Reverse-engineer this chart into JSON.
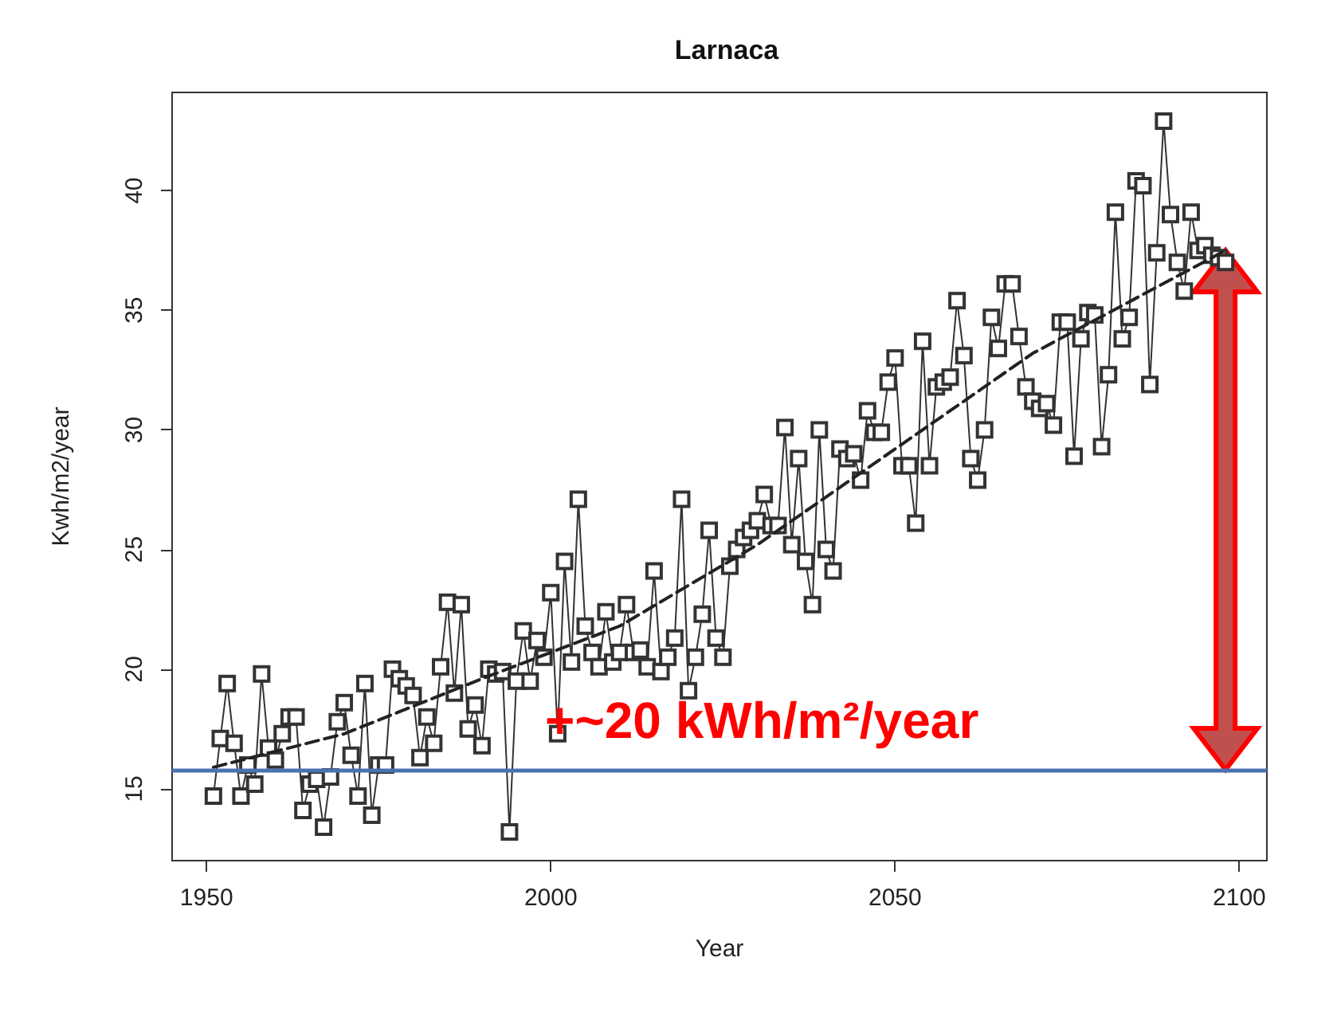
{
  "chart_data": {
    "type": "line",
    "title": "Larnaca",
    "xlabel": "Year",
    "ylabel": "Kwh/m2/year",
    "annotations": [
      "+~20 kWh/m²/year"
    ],
    "marker": "square",
    "grid": false,
    "xlim": [
      1945,
      2104
    ],
    "ylim": [
      12.0,
      44.1
    ],
    "xticks": [
      1950,
      2000,
      2050,
      2100
    ],
    "yticks": [
      15,
      20,
      25,
      30,
      35,
      40
    ],
    "ref_lines": [
      {
        "axis": "y",
        "value": 15.8,
        "color": "#4a72b0"
      }
    ],
    "series": [
      {
        "color": "#333333",
        "x": [
          1951,
          1952,
          1953,
          1954,
          1955,
          1956,
          1957,
          1958,
          1959,
          1960,
          1961,
          1962,
          1963,
          1964,
          1965,
          1966,
          1967,
          1968,
          1969,
          1970,
          1971,
          1972,
          1973,
          1974,
          1975,
          1976,
          1977,
          1978,
          1979,
          1980,
          1981,
          1982,
          1983,
          1984,
          1985,
          1986,
          1987,
          1988,
          1989,
          1990,
          1991,
          1992,
          1993,
          1994,
          1995,
          1996,
          1997,
          1998,
          1999,
          2000,
          2001,
          2002,
          2003,
          2004,
          2005,
          2006,
          2007,
          2008,
          2009,
          2010,
          2011,
          2012,
          2013,
          2014,
          2015,
          2016,
          2017,
          2018,
          2019,
          2020,
          2021,
          2022,
          2023,
          2024,
          2025,
          2026,
          2027,
          2028,
          2029,
          2030,
          2031,
          2032,
          2033,
          2034,
          2035,
          2036,
          2037,
          2038,
          2039,
          2040,
          2041,
          2042,
          2043,
          2044,
          2045,
          2046,
          2047,
          2048,
          2049,
          2050,
          2051,
          2052,
          2053,
          2054,
          2055,
          2056,
          2057,
          2058,
          2059,
          2060,
          2061,
          2062,
          2063,
          2064,
          2065,
          2066,
          2067,
          2068,
          2069,
          2070,
          2071,
          2072,
          2073,
          2074,
          2075,
          2076,
          2077,
          2078,
          2079,
          2080,
          2081,
          2082,
          2083,
          2084,
          2085,
          2086,
          2087,
          2088,
          2089,
          2090,
          2091,
          2092,
          2093,
          2094,
          2095,
          2096,
          2097,
          2098
        ],
        "values": [
          14.7,
          17.1,
          19.4,
          16.9,
          14.7,
          16.0,
          15.2,
          19.8,
          16.7,
          16.2,
          17.3,
          18.0,
          18.0,
          14.1,
          15.2,
          15.4,
          13.4,
          15.5,
          17.8,
          18.6,
          16.4,
          14.7,
          19.4,
          13.9,
          16.0,
          16.0,
          20.0,
          19.6,
          19.3,
          18.9,
          16.3,
          18.0,
          16.9,
          20.1,
          22.8,
          19.0,
          22.7,
          17.5,
          18.5,
          16.8,
          20.0,
          19.8,
          19.9,
          13.2,
          19.5,
          21.6,
          19.5,
          21.2,
          20.5,
          23.2,
          17.3,
          24.5,
          20.3,
          27.1,
          21.8,
          20.7,
          20.1,
          22.4,
          20.3,
          20.7,
          22.7,
          20.7,
          20.8,
          20.1,
          24.1,
          19.9,
          20.5,
          21.3,
          27.1,
          19.1,
          20.5,
          22.3,
          25.8,
          21.3,
          20.5,
          24.3,
          25.0,
          25.5,
          25.8,
          26.2,
          27.3,
          26.0,
          26.0,
          30.1,
          25.2,
          28.8,
          24.5,
          22.7,
          30.0,
          25.0,
          24.1,
          29.2,
          28.8,
          29.0,
          27.9,
          30.8,
          29.9,
          29.9,
          32.0,
          33.0,
          28.5,
          28.5,
          26.1,
          33.7,
          28.5,
          31.8,
          32.0,
          32.2,
          35.4,
          33.1,
          28.8,
          27.9,
          30.0,
          34.7,
          33.4,
          36.1,
          36.1,
          33.9,
          31.8,
          31.2,
          30.9,
          31.1,
          30.2,
          34.5,
          34.5,
          28.9,
          33.8,
          34.9,
          34.8,
          29.3,
          32.3,
          39.1,
          33.8,
          34.7,
          40.4,
          40.2,
          31.9,
          37.4,
          42.9,
          39.0,
          37.0,
          35.8,
          39.1,
          37.5,
          37.7,
          37.3,
          37.2,
          37.0
        ]
      },
      {
        "color": "#222222",
        "marker": "none",
        "line_style": "dashed",
        "x": [
          1951,
          1970,
          1990,
          2010,
          2030,
          2050,
          2070,
          2098
        ],
        "values": [
          15.9,
          17.3,
          19.6,
          21.8,
          25.2,
          29.2,
          33.2,
          37.5
        ]
      }
    ]
  }
}
